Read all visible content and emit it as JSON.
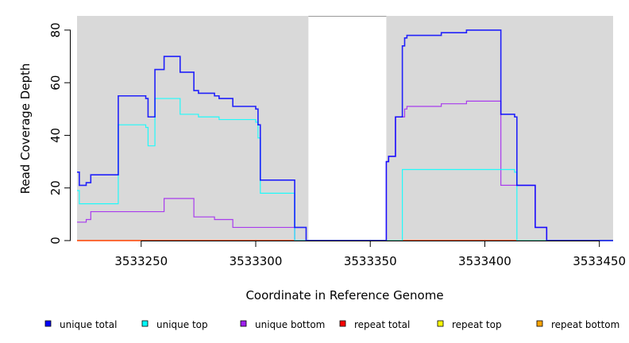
{
  "chart_data": {
    "type": "line",
    "title": "",
    "xlabel": "Coordinate in Reference Genome",
    "ylabel": "Read Coverage Depth",
    "xlim": [
      3533222,
      3533456
    ],
    "ylim": [
      0,
      85.4
    ],
    "xticks": [
      3533250,
      3533300,
      3533350,
      3533400,
      3533450
    ],
    "yticks": [
      0,
      20,
      40,
      60,
      80
    ],
    "shaded_regions": [
      [
        3533222,
        3533323
      ],
      [
        3533357,
        3533456
      ]
    ],
    "shade_color": "#d9d9d9",
    "legend_position": "bottom",
    "series": [
      {
        "name": "unique total",
        "color": "#0000ff",
        "steps": [
          [
            3533222,
            26
          ],
          [
            3533223,
            21
          ],
          [
            3533226,
            22
          ],
          [
            3533228,
            25
          ],
          [
            3533240,
            55
          ],
          [
            3533252,
            54
          ],
          [
            3533253,
            47
          ],
          [
            3533256,
            65
          ],
          [
            3533260,
            70
          ],
          [
            3533267,
            64
          ],
          [
            3533273,
            57
          ],
          [
            3533275,
            56
          ],
          [
            3533282,
            55
          ],
          [
            3533284,
            54
          ],
          [
            3533290,
            51
          ],
          [
            3533300,
            50
          ],
          [
            3533301,
            44
          ],
          [
            3533302,
            23
          ],
          [
            3533317,
            5
          ],
          [
            3533322,
            0
          ],
          [
            3533357,
            30
          ],
          [
            3533358,
            32
          ],
          [
            3533361,
            47
          ],
          [
            3533364,
            74
          ],
          [
            3533365,
            77
          ],
          [
            3533366,
            78
          ],
          [
            3533381,
            79
          ],
          [
            3533392,
            80
          ],
          [
            3533407,
            48
          ],
          [
            3533413,
            47
          ],
          [
            3533414,
            21
          ],
          [
            3533422,
            5
          ],
          [
            3533427,
            0
          ],
          [
            3533456,
            0
          ]
        ]
      },
      {
        "name": "unique top",
        "color": "#00ffff",
        "steps": [
          [
            3533222,
            19
          ],
          [
            3533223,
            14
          ],
          [
            3533240,
            44
          ],
          [
            3533252,
            43
          ],
          [
            3533253,
            36
          ],
          [
            3533256,
            54
          ],
          [
            3533267,
            48
          ],
          [
            3533275,
            47
          ],
          [
            3533284,
            46
          ],
          [
            3533300,
            45
          ],
          [
            3533301,
            39
          ],
          [
            3533302,
            18
          ],
          [
            3533317,
            0
          ],
          [
            3533364,
            27
          ],
          [
            3533413,
            26
          ],
          [
            3533414,
            0
          ],
          [
            3533456,
            0
          ]
        ]
      },
      {
        "name": "unique bottom",
        "color": "#a020f0",
        "steps": [
          [
            3533222,
            7
          ],
          [
            3533226,
            8
          ],
          [
            3533228,
            11
          ],
          [
            3533260,
            16
          ],
          [
            3533273,
            9
          ],
          [
            3533282,
            8
          ],
          [
            3533290,
            5
          ],
          [
            3533317,
            0
          ],
          [
            3533357,
            30
          ],
          [
            3533358,
            32
          ],
          [
            3533361,
            47
          ],
          [
            3533365,
            50
          ],
          [
            3533366,
            51
          ],
          [
            3533381,
            52
          ],
          [
            3533392,
            53
          ],
          [
            3533407,
            21
          ],
          [
            3533414,
            21
          ],
          [
            3533422,
            5
          ],
          [
            3533427,
            0
          ],
          [
            3533456,
            0
          ]
        ]
      },
      {
        "name": "repeat total",
        "color": "#ff0000",
        "steps": [
          [
            3533222,
            0
          ],
          [
            3533456,
            0
          ]
        ]
      },
      {
        "name": "repeat top",
        "color": "#ffff00",
        "steps": [
          [
            3533222,
            0
          ],
          [
            3533456,
            0
          ]
        ]
      },
      {
        "name": "repeat bottom",
        "color": "#ffa500",
        "steps": [
          [
            3533222,
            0
          ],
          [
            3533456,
            0
          ]
        ]
      }
    ]
  }
}
